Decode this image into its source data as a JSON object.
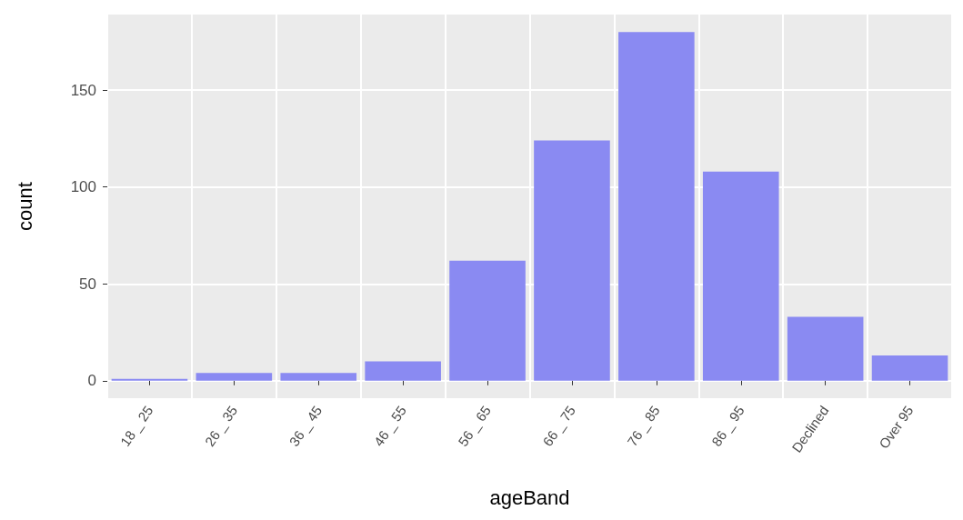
{
  "chart_data": {
    "type": "bar",
    "xlabel": "ageBand",
    "ylabel": "count",
    "categories": [
      "18 _ 25",
      "26 _ 35",
      "36 _ 45",
      "46 _ 55",
      "56 _ 65",
      "66 _ 75",
      "76 _ 85",
      "86 _ 95",
      "Declined",
      "Over 95"
    ],
    "values": [
      1,
      4,
      4,
      10,
      62,
      124,
      180,
      108,
      33,
      13
    ],
    "color": "#8a8af2",
    "ylim": [
      -9,
      189
    ],
    "yticks": [
      0,
      50,
      100,
      150
    ],
    "grid": true
  }
}
